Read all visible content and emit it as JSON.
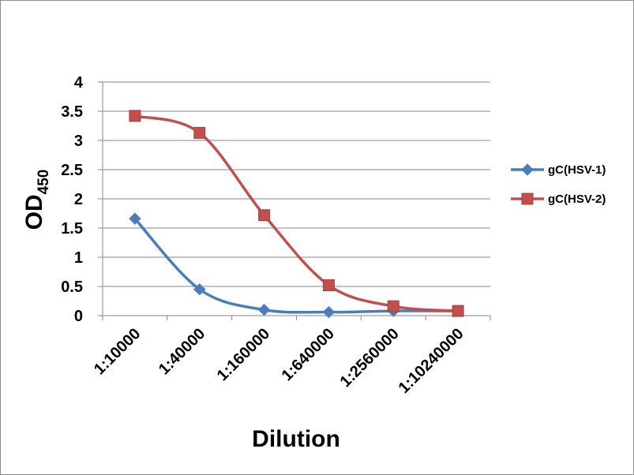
{
  "chart_data": {
    "type": "line",
    "x_label": "Dilution",
    "y_label": "OD",
    "y_label_subscript": "450",
    "categories": [
      "1:10000",
      "1:40000",
      "1:160000",
      "1:640000",
      "1:2560000",
      "1:10240000"
    ],
    "ylim": [
      0,
      4
    ],
    "y_ticks": [
      "0",
      "0.5",
      "1",
      "1.5",
      "2",
      "2.5",
      "3",
      "3.5",
      "4"
    ],
    "grid": true,
    "legend_position": "right",
    "series": [
      {
        "name": "gC(HSV-1)",
        "color": "#4a7ebb",
        "marker": "diamond",
        "values": [
          1.66,
          0.45,
          0.1,
          0.06,
          0.08,
          0.08
        ]
      },
      {
        "name": "gC(HSV-2)",
        "color": "#c0504d",
        "marker": "square",
        "values": [
          3.42,
          3.13,
          1.72,
          0.52,
          0.16,
          0.08
        ]
      }
    ]
  }
}
